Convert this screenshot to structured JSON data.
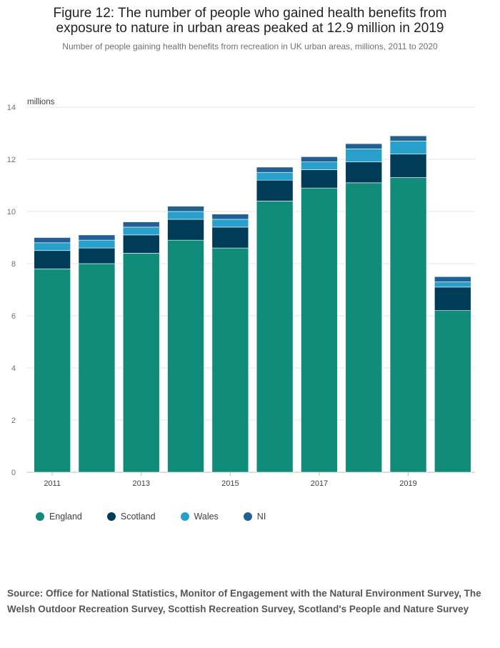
{
  "title_line1": "Figure 12: The number of people who gained health benefits from",
  "title_line2": "exposure to nature in urban areas peaked at 12.9 million in 2019",
  "subtitle": "Number of people gaining health benefits from recreation in UK urban areas, millions, 2011 to 2020",
  "source": "Source: Office for National Statistics, Monitor of Engagement with the Natural Environment Survey, The Welsh Outdoor Recreation Survey, Scottish Recreation Survey, Scotland's People and Nature Survey",
  "chart_data": {
    "type": "bar",
    "stacked": true,
    "ylabel": "millions",
    "ylim": [
      0,
      14
    ],
    "yticks": [
      0,
      2,
      4,
      6,
      8,
      10,
      12,
      14
    ],
    "categories": [
      "2011",
      "2012",
      "2013",
      "2014",
      "2015",
      "2016",
      "2017",
      "2018",
      "2019",
      "2020"
    ],
    "xtick_labels": [
      "2011",
      "",
      "2013",
      "",
      "2015",
      "",
      "2017",
      "",
      "2019",
      ""
    ],
    "grid": true,
    "legend_position": "bottom-left",
    "series": [
      {
        "name": "England",
        "color": "#118c7b",
        "values": [
          7.8,
          8.0,
          8.4,
          8.9,
          8.6,
          10.4,
          10.9,
          11.1,
          11.3,
          6.2
        ]
      },
      {
        "name": "Scotland",
        "color": "#003c57",
        "values": [
          0.7,
          0.6,
          0.7,
          0.8,
          0.8,
          0.8,
          0.7,
          0.8,
          0.9,
          0.9
        ]
      },
      {
        "name": "Wales",
        "color": "#27a0cc",
        "values": [
          0.3,
          0.3,
          0.3,
          0.3,
          0.3,
          0.3,
          0.3,
          0.5,
          0.5,
          0.2
        ]
      },
      {
        "name": "NI",
        "color": "#206095",
        "values": [
          0.2,
          0.2,
          0.2,
          0.2,
          0.2,
          0.2,
          0.2,
          0.2,
          0.2,
          0.2
        ]
      }
    ]
  }
}
